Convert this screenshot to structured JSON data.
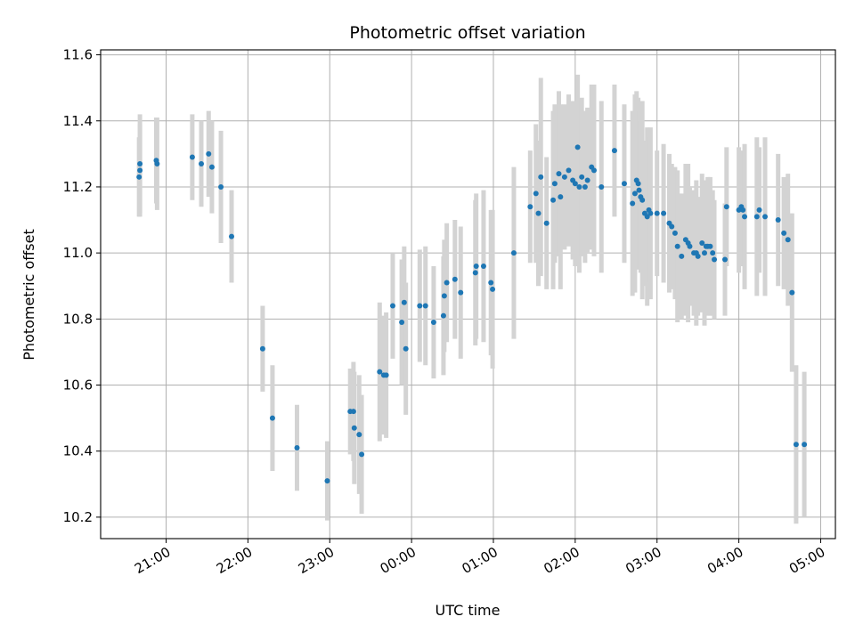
{
  "chart_data": {
    "type": "scatter",
    "title": "Photometric offset variation",
    "xlabel": "UTC time",
    "ylabel": "Photometric offset",
    "x_unit": "hours since 00:00 UTC",
    "xlim": [
      -3.8,
      5.18
    ],
    "ylim": [
      10.135,
      11.615
    ],
    "grid": true,
    "x_ticks": [
      {
        "value": -3,
        "label": "21:00"
      },
      {
        "value": -2,
        "label": "22:00"
      },
      {
        "value": -1,
        "label": "23:00"
      },
      {
        "value": 0,
        "label": "00:00"
      },
      {
        "value": 1,
        "label": "01:00"
      },
      {
        "value": 2,
        "label": "02:00"
      },
      {
        "value": 3,
        "label": "03:00"
      },
      {
        "value": 4,
        "label": "04:00"
      },
      {
        "value": 5,
        "label": "05:00"
      }
    ],
    "y_ticks": [
      {
        "value": 10.2,
        "label": "10.2"
      },
      {
        "value": 10.4,
        "label": "10.4"
      },
      {
        "value": 10.6,
        "label": "10.6"
      },
      {
        "value": 10.8,
        "label": "10.8"
      },
      {
        "value": 11.0,
        "label": "11.0"
      },
      {
        "value": 11.2,
        "label": "11.2"
      },
      {
        "value": 11.4,
        "label": "11.4"
      },
      {
        "value": 11.6,
        "label": "11.6"
      }
    ],
    "colors": {
      "point": "#1f77b4",
      "errorbar": "#d3d3d3",
      "grid": "#b0b0b0"
    },
    "series": [
      {
        "x": [
          -3.33,
          -3.32,
          -3.32,
          -3.12,
          -3.11,
          -2.68,
          -2.57,
          -2.48,
          -2.44,
          -2.33,
          -2.2,
          -1.82,
          -1.7,
          -1.4,
          -1.03,
          -0.75,
          -0.71,
          -0.7,
          -0.64,
          -0.61,
          -0.39,
          -0.34,
          -0.31,
          -0.23,
          -0.12,
          -0.09,
          -0.07,
          0.1,
          0.17,
          0.27,
          0.39,
          0.4,
          0.43,
          0.53,
          0.6,
          0.78,
          0.79,
          0.88,
          0.97,
          0.99,
          1.25,
          1.45,
          1.52,
          1.55,
          1.58,
          1.65,
          1.73,
          1.75,
          1.8,
          1.82,
          1.87,
          1.92,
          1.97,
          2.0,
          2.03,
          2.05,
          2.08,
          2.12,
          2.15,
          2.2,
          2.23,
          2.32,
          2.48,
          2.6,
          2.7,
          2.73,
          2.75,
          2.77,
          2.78,
          2.8,
          2.82,
          2.85,
          2.88,
          2.9,
          2.92,
          3.0,
          3.08,
          3.15,
          3.18,
          3.22,
          3.25,
          3.3,
          3.35,
          3.38,
          3.4,
          3.45,
          3.48,
          3.5,
          3.55,
          3.58,
          3.6,
          3.62,
          3.65,
          3.68,
          3.7,
          3.83,
          3.85,
          4.0,
          4.03,
          4.05,
          4.07,
          4.22,
          4.25,
          4.32,
          4.48,
          4.55,
          4.6,
          4.65,
          4.7,
          4.8
        ],
        "y": [
          11.23,
          11.25,
          11.27,
          11.28,
          11.27,
          11.29,
          11.27,
          11.3,
          11.26,
          11.2,
          11.05,
          10.71,
          10.5,
          10.41,
          10.31,
          10.52,
          10.52,
          10.47,
          10.45,
          10.39,
          10.64,
          10.63,
          10.63,
          10.84,
          10.79,
          10.85,
          10.71,
          10.84,
          10.84,
          10.79,
          10.81,
          10.87,
          10.91,
          10.92,
          10.88,
          10.94,
          10.96,
          10.96,
          10.91,
          10.89,
          11.0,
          11.14,
          11.18,
          11.12,
          11.23,
          11.09,
          11.16,
          11.21,
          11.24,
          11.17,
          11.23,
          11.25,
          11.22,
          11.21,
          11.32,
          11.2,
          11.23,
          11.2,
          11.22,
          11.26,
          11.25,
          11.2,
          11.31,
          11.21,
          11.15,
          11.18,
          11.22,
          11.21,
          11.19,
          11.17,
          11.16,
          11.12,
          11.11,
          11.13,
          11.12,
          11.12,
          11.12,
          11.09,
          11.08,
          11.06,
          11.02,
          10.99,
          11.04,
          11.03,
          11.02,
          11.0,
          11.0,
          10.99,
          11.03,
          11.0,
          11.02,
          11.02,
          11.02,
          11.0,
          10.98,
          10.98,
          11.14,
          11.13,
          11.14,
          11.13,
          11.11,
          11.11,
          11.13,
          11.11,
          11.1,
          11.06,
          11.04,
          10.88,
          10.42,
          10.42
        ],
        "err": [
          0.12,
          0.14,
          0.15,
          0.13,
          0.14,
          0.13,
          0.13,
          0.13,
          0.14,
          0.17,
          0.14,
          0.13,
          0.16,
          0.13,
          0.12,
          0.13,
          0.15,
          0.17,
          0.18,
          0.18,
          0.21,
          0.18,
          0.19,
          0.16,
          0.19,
          0.17,
          0.2,
          0.17,
          0.18,
          0.17,
          0.18,
          0.17,
          0.18,
          0.18,
          0.2,
          0.22,
          0.22,
          0.23,
          0.22,
          0.24,
          0.26,
          0.17,
          0.21,
          0.22,
          0.3,
          0.2,
          0.27,
          0.24,
          0.25,
          0.28,
          0.22,
          0.23,
          0.24,
          0.25,
          0.22,
          0.26,
          0.24,
          0.23,
          0.22,
          0.25,
          0.26,
          0.26,
          0.2,
          0.24,
          0.28,
          0.3,
          0.27,
          0.26,
          0.24,
          0.23,
          0.3,
          0.22,
          0.27,
          0.22,
          0.26,
          0.19,
          0.21,
          0.21,
          0.19,
          0.2,
          0.23,
          0.19,
          0.23,
          0.24,
          0.18,
          0.19,
          0.22,
          0.18,
          0.21,
          0.22,
          0.2,
          0.21,
          0.21,
          0.19,
          0.18,
          0.17,
          0.18,
          0.19,
          0.17,
          0.17,
          0.22,
          0.24,
          0.19,
          0.24,
          0.2,
          0.17,
          0.2,
          0.24,
          0.24,
          0.22
        ]
      }
    ]
  }
}
